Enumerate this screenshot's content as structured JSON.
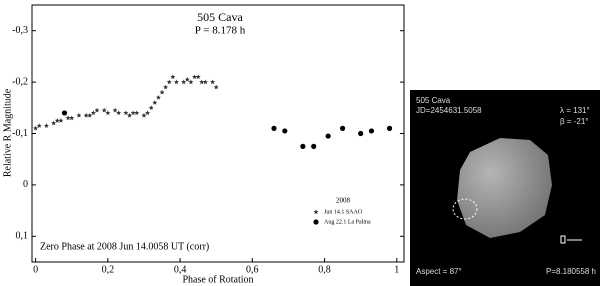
{
  "chart_data": {
    "type": "scatter",
    "title": "505 Cava",
    "subtitle": "P = 8.178 h",
    "x_label": "Phase of Rotation",
    "y_label": "Relative R Magnitude",
    "annotation": "Zero Phase at 2008 Jun 14.0058 UT (corr)",
    "legend_title": "2008",
    "xlim": [
      -0.01,
      1.02
    ],
    "xticks": [
      0,
      {
        "value": 0.2,
        "label": "0,2"
      },
      {
        "value": 0.4,
        "label": "0,4"
      },
      {
        "value": 0.6,
        "label": "0,6"
      },
      {
        "value": 0.8,
        "label": "0,8"
      },
      1
    ],
    "ylim": [
      -0.35,
      0.15
    ],
    "y_inverted": true,
    "yticks": [
      {
        "value": -0.3,
        "label": "-0,3"
      },
      {
        "value": -0.2,
        "label": "-0,2"
      },
      {
        "value": -0.1,
        "label": "-0,1"
      },
      0,
      {
        "value": 0.1,
        "label": "0,1"
      }
    ],
    "series": [
      {
        "name": "Jun 14.1 SAAO",
        "color": "#333333",
        "marker": "star",
        "x": [
          0.0,
          0.01,
          0.03,
          0.05,
          0.06,
          0.07,
          0.09,
          0.1,
          0.12,
          0.14,
          0.15,
          0.16,
          0.17,
          0.19,
          0.2,
          0.22,
          0.23,
          0.25,
          0.26,
          0.27,
          0.28,
          0.3,
          0.31,
          0.32,
          0.33,
          0.34,
          0.35,
          0.36,
          0.37,
          0.38,
          0.39,
          0.41,
          0.42,
          0.43,
          0.44,
          0.45,
          0.46,
          0.47,
          0.49,
          0.5
        ],
        "values": [
          -0.11,
          -0.115,
          -0.115,
          -0.12,
          -0.125,
          -0.125,
          -0.13,
          -0.13,
          -0.135,
          -0.135,
          -0.135,
          -0.14,
          -0.145,
          -0.145,
          -0.14,
          -0.145,
          -0.14,
          -0.14,
          -0.135,
          -0.14,
          -0.14,
          -0.135,
          -0.14,
          -0.15,
          -0.16,
          -0.17,
          -0.18,
          -0.19,
          -0.2,
          -0.21,
          -0.2,
          -0.2,
          -0.205,
          -0.2,
          -0.21,
          -0.21,
          -0.2,
          -0.2,
          -0.2,
          -0.19
        ]
      },
      {
        "name": "Aug 22.1 La Palma",
        "color": "#000000",
        "marker": "circle",
        "x": [
          0.08,
          0.66,
          0.69,
          0.74,
          0.77,
          0.81,
          0.85,
          0.9,
          0.93,
          0.98
        ],
        "values": [
          -0.14,
          -0.11,
          -0.105,
          -0.075,
          -0.075,
          -0.095,
          -0.11,
          -0.1,
          -0.105,
          -0.11
        ]
      }
    ]
  },
  "model_image": {
    "name": "505 Cava",
    "jd": "JD=2454631.5058",
    "lambda": "λ = 131°",
    "beta": "β = -21°",
    "aspect": "Aspect = 87°",
    "period": "P=8.180558 h"
  }
}
